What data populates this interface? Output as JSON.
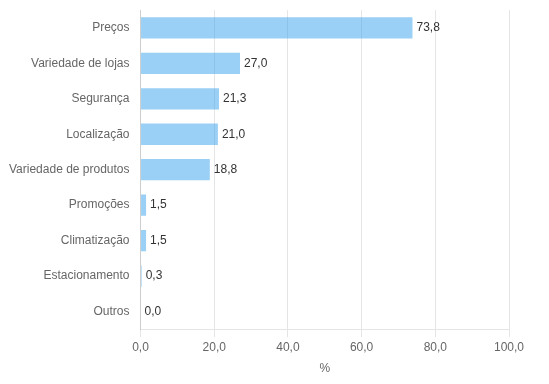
{
  "chart_data": {
    "type": "bar",
    "orientation": "horizontal",
    "categories": [
      "Preços",
      "Variedade de lojas",
      "Segurança",
      "Localização",
      "Variedade de produtos",
      "Promoções",
      "Climatização",
      "Estacionamento",
      "Outros"
    ],
    "values": [
      73.8,
      27.0,
      21.3,
      21.0,
      18.8,
      1.5,
      1.5,
      0.3,
      0.0
    ],
    "value_labels": [
      "73,8",
      "27,0",
      "21,3",
      "21,0",
      "18,8",
      "1,5",
      "1,5",
      "0,3",
      "0,0"
    ],
    "data_labels": true,
    "xlabel": "%",
    "xlim": [
      0,
      100
    ],
    "xticks": [
      {
        "value": 0,
        "label": "0,0"
      },
      {
        "value": 20,
        "label": "20,0"
      },
      {
        "value": 40,
        "label": "40,0"
      },
      {
        "value": 60,
        "label": "60,0"
      },
      {
        "value": 80,
        "label": "80,0"
      },
      {
        "value": 100,
        "label": "100,0"
      }
    ],
    "grid": true
  }
}
